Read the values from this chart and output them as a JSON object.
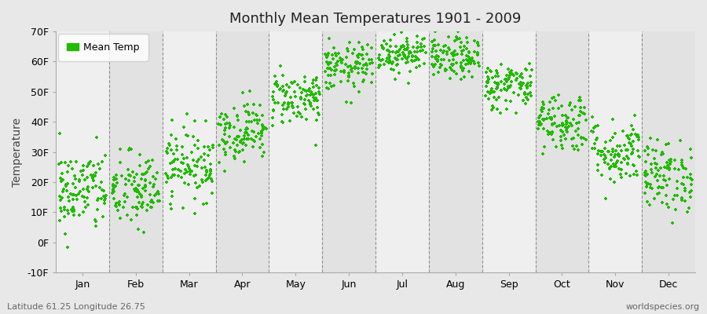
{
  "title": "Monthly Mean Temperatures 1901 - 2009",
  "ylabel": "Temperature",
  "xlabel_labels": [
    "Jan",
    "Feb",
    "Mar",
    "Apr",
    "May",
    "Jun",
    "Jul",
    "Aug",
    "Sep",
    "Oct",
    "Nov",
    "Dec"
  ],
  "dot_color": "#22bb00",
  "background_color": "#e8e8e8",
  "plot_bg_color_light": "#efefef",
  "plot_bg_color_dark": "#e2e2e2",
  "legend_label": "Mean Temp",
  "ylim": [
    -10,
    70
  ],
  "yticks": [
    -10,
    0,
    10,
    20,
    30,
    40,
    50,
    60,
    70
  ],
  "ytick_labels": [
    "-10F",
    "0F",
    "10F",
    "20F",
    "30F",
    "40F",
    "50F",
    "60F",
    "70F"
  ],
  "footer_left": "Latitude 61.25 Longitude 26.75",
  "footer_right": "worldspecies.org",
  "num_years": 109,
  "monthly_means_F": [
    17.0,
    17.0,
    26.0,
    37.0,
    48.0,
    58.0,
    63.0,
    61.0,
    52.0,
    40.0,
    30.0,
    22.0
  ],
  "monthly_stds_F": [
    7.0,
    6.5,
    6.0,
    5.0,
    4.5,
    4.0,
    3.5,
    3.5,
    4.0,
    5.0,
    5.5,
    6.0
  ]
}
